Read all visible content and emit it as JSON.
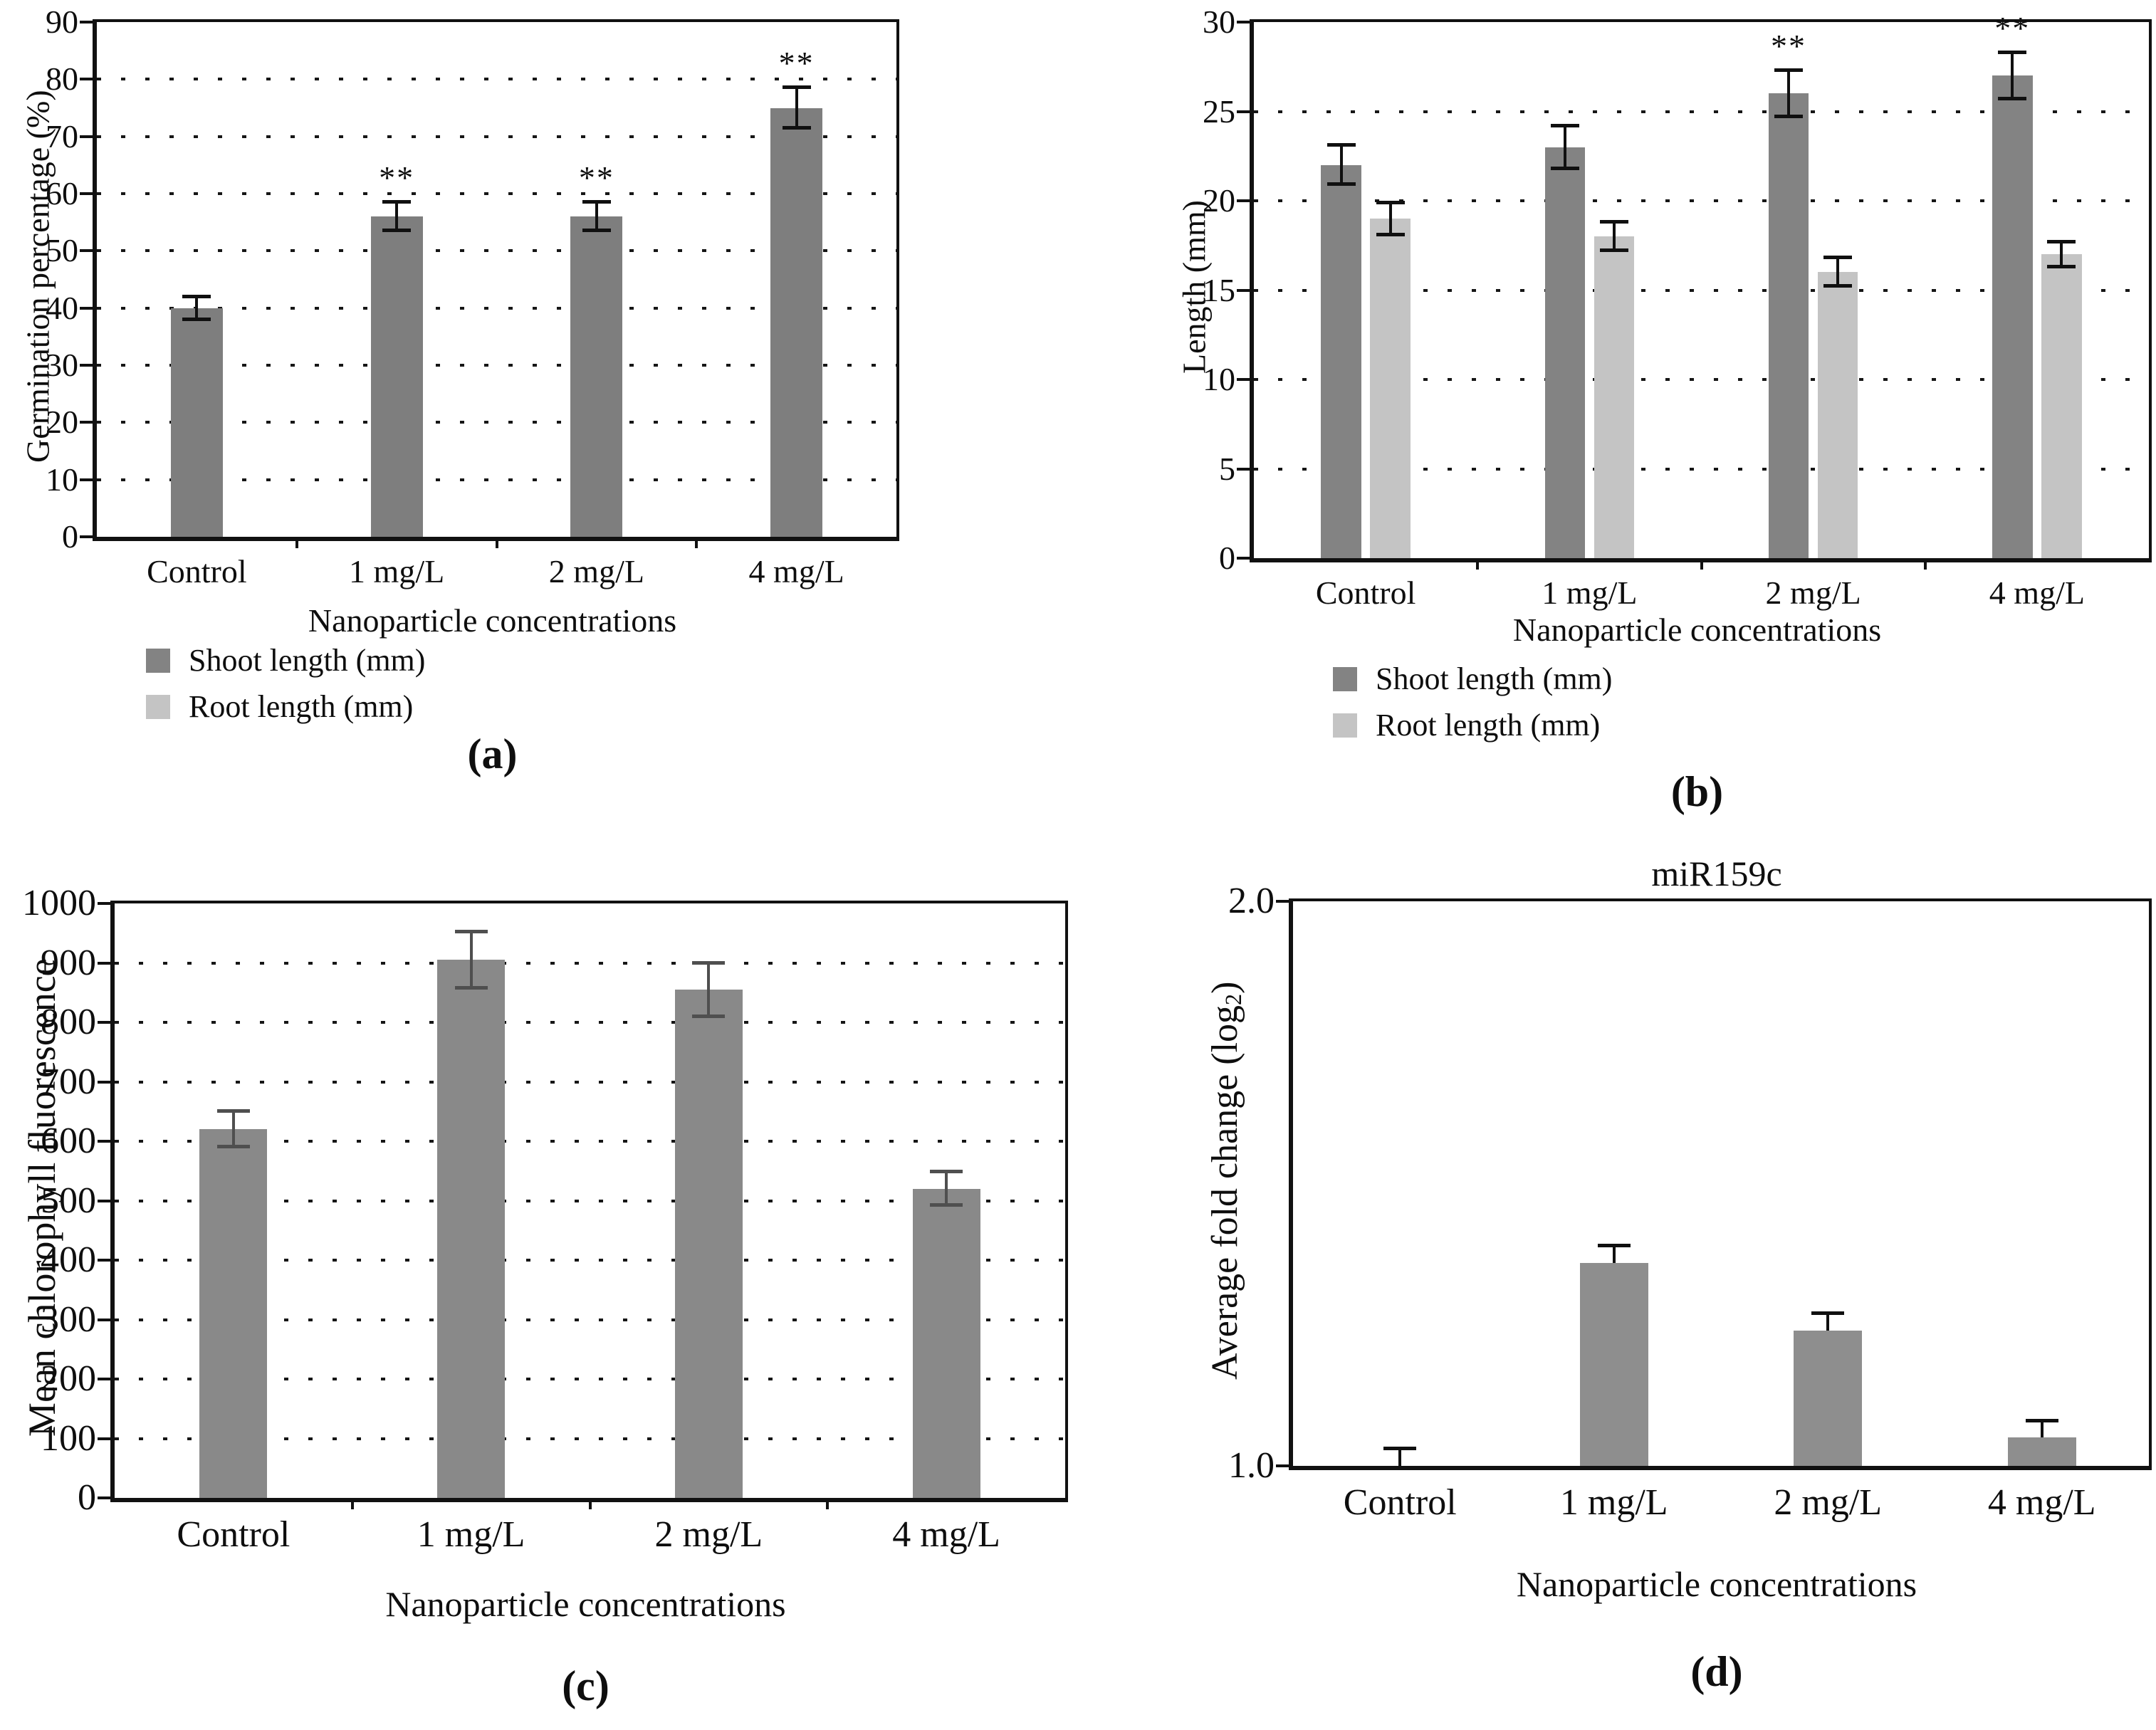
{
  "chart_data": [
    {
      "type": "bar",
      "panel_label": "(a)",
      "title": "",
      "xlabel": "Nanoparticle concentrations",
      "ylabel": "Germination percentage (%)",
      "categories": [
        "Control",
        "1 mg/L",
        "2 mg/L",
        "4 mg/L"
      ],
      "ylim": [
        0,
        90
      ],
      "yticks": [
        0,
        10,
        20,
        30,
        40,
        50,
        60,
        70,
        80,
        90
      ],
      "ytick_labels": [
        "0",
        "10",
        "20",
        "30",
        "40",
        "50",
        "60",
        "70",
        "80",
        "90"
      ],
      "grid": "dotted-horizontal",
      "legend_position": "below-left",
      "error_bars": "symmetric",
      "error_color": "#101010",
      "series": [
        {
          "name": "Germination percentage",
          "color": "#7e7e7e",
          "values": [
            40,
            56,
            56,
            75
          ],
          "errors": [
            2,
            2.5,
            2.5,
            3.5
          ],
          "significance": [
            "",
            "**",
            "**",
            "**"
          ]
        }
      ],
      "legend": [
        {
          "label": "Shoot length (mm)",
          "color": "#838383"
        },
        {
          "label": "Root length (mm)",
          "color": "#c4c4c4"
        }
      ]
    },
    {
      "type": "bar",
      "panel_label": "(b)",
      "title": "",
      "xlabel": "Nanoparticle concentrations",
      "ylabel": "Length (mm)",
      "categories": [
        "Control",
        "1 mg/L",
        "2 mg/L",
        "4 mg/L"
      ],
      "ylim": [
        0,
        30
      ],
      "yticks": [
        0,
        5,
        10,
        15,
        20,
        25,
        30
      ],
      "ytick_labels": [
        "0",
        "5",
        "10",
        "15",
        "20",
        "25",
        "30"
      ],
      "grid": "dotted-horizontal",
      "legend_position": "below-left",
      "error_bars": "symmetric",
      "error_color": "#101010",
      "series": [
        {
          "name": "Shoot length (mm)",
          "color": "#838383",
          "values": [
            22,
            23,
            26,
            27
          ],
          "errors": [
            1.1,
            1.2,
            1.3,
            1.3
          ],
          "significance": [
            "",
            "",
            "**",
            "**"
          ]
        },
        {
          "name": "Root length (mm)",
          "color": "#c4c4c4",
          "values": [
            19,
            18,
            16,
            17
          ],
          "errors": [
            0.9,
            0.8,
            0.8,
            0.7
          ],
          "significance": [
            "",
            "",
            "",
            ""
          ]
        }
      ],
      "legend": [
        {
          "label": "Shoot length (mm)",
          "color": "#838383"
        },
        {
          "label": "Root length (mm)",
          "color": "#c4c4c4"
        }
      ]
    },
    {
      "type": "bar",
      "panel_label": "(c)",
      "title": "",
      "xlabel": "Nanoparticle concentrations",
      "ylabel": "Mean chlorophyll fluorescence",
      "categories": [
        "Control",
        "1 mg/L",
        "2 mg/L",
        "4 mg/L"
      ],
      "ylim": [
        0,
        1000
      ],
      "yticks": [
        0,
        100,
        200,
        300,
        400,
        500,
        600,
        700,
        800,
        900,
        1000
      ],
      "ytick_labels": [
        "0",
        "100",
        "200",
        "300",
        "400",
        "500",
        "600",
        "700",
        "800",
        "900",
        "1000"
      ],
      "grid": "dotted-horizontal",
      "legend_position": "none",
      "error_bars": "symmetric",
      "error_color": "#4f4f4f",
      "series": [
        {
          "name": "Mean chlorophyll fluorescence",
          "color": "#898989",
          "values": [
            620,
            905,
            855,
            520
          ],
          "errors": [
            30,
            47,
            45,
            28
          ],
          "significance": [
            "",
            "",
            "",
            ""
          ]
        }
      ],
      "legend": []
    },
    {
      "type": "bar",
      "panel_label": "(d)",
      "title": "miR159c",
      "xlabel": "Nanoparticle concentrations",
      "ylabel": "Average fold change (log2)",
      "ylabel_parts": {
        "prefix": "Average fold change (log",
        "sub": "2",
        "suffix": ")"
      },
      "categories": [
        "Control",
        "1 mg/L",
        "2 mg/L",
        "4 mg/L"
      ],
      "ylim": [
        1.0,
        2.0
      ],
      "yticks": [
        1.0,
        2.0
      ],
      "ytick_labels": [
        "1.0",
        "2.0"
      ],
      "grid": "none",
      "legend_position": "none",
      "error_bars": "upper",
      "error_color": "#101010",
      "series": [
        {
          "name": "miR159c average fold change",
          "color": "#8e8e8e",
          "values": [
            1.0,
            1.36,
            1.24,
            1.05
          ],
          "errors": [
            0.03,
            0.03,
            0.03,
            0.03
          ],
          "significance": [
            "",
            "",
            "",
            ""
          ]
        }
      ],
      "legend": []
    }
  ]
}
